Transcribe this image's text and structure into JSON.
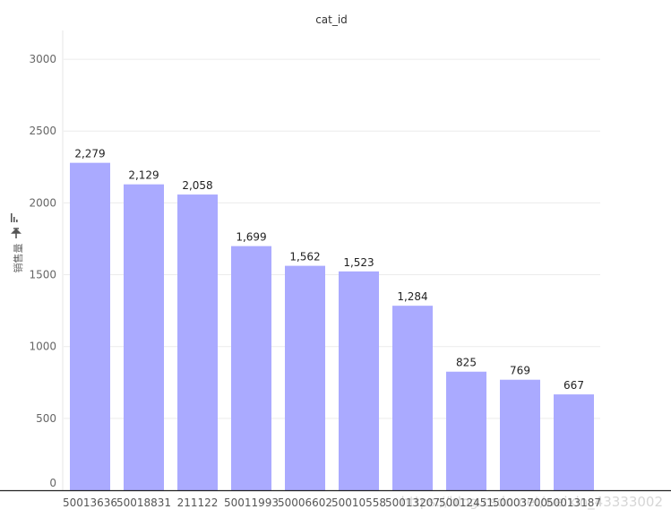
{
  "chart_data": {
    "type": "bar",
    "title": "cat_id",
    "ylabel": "销售量",
    "ylim": [
      0,
      3200
    ],
    "yticks": [
      0,
      500,
      1000,
      1500,
      2000,
      2500,
      3000
    ],
    "grid": true,
    "categories": [
      "50013636",
      "50018831",
      "211122",
      "50011993",
      "50006602",
      "50010558",
      "50013207",
      "50012451",
      "50003700",
      "50013187"
    ],
    "values": [
      2279,
      2129,
      2058,
      1699,
      1562,
      1523,
      1284,
      825,
      769,
      667
    ],
    "value_labels": [
      "2,279",
      "2,129",
      "2,058",
      "1,699",
      "1,562",
      "1,523",
      "1,284",
      "825",
      "769",
      "667"
    ],
    "bar_color": "#aaaaff"
  },
  "watermark": {
    "text": "https://blog.csdn.net/weixin_43333002"
  }
}
